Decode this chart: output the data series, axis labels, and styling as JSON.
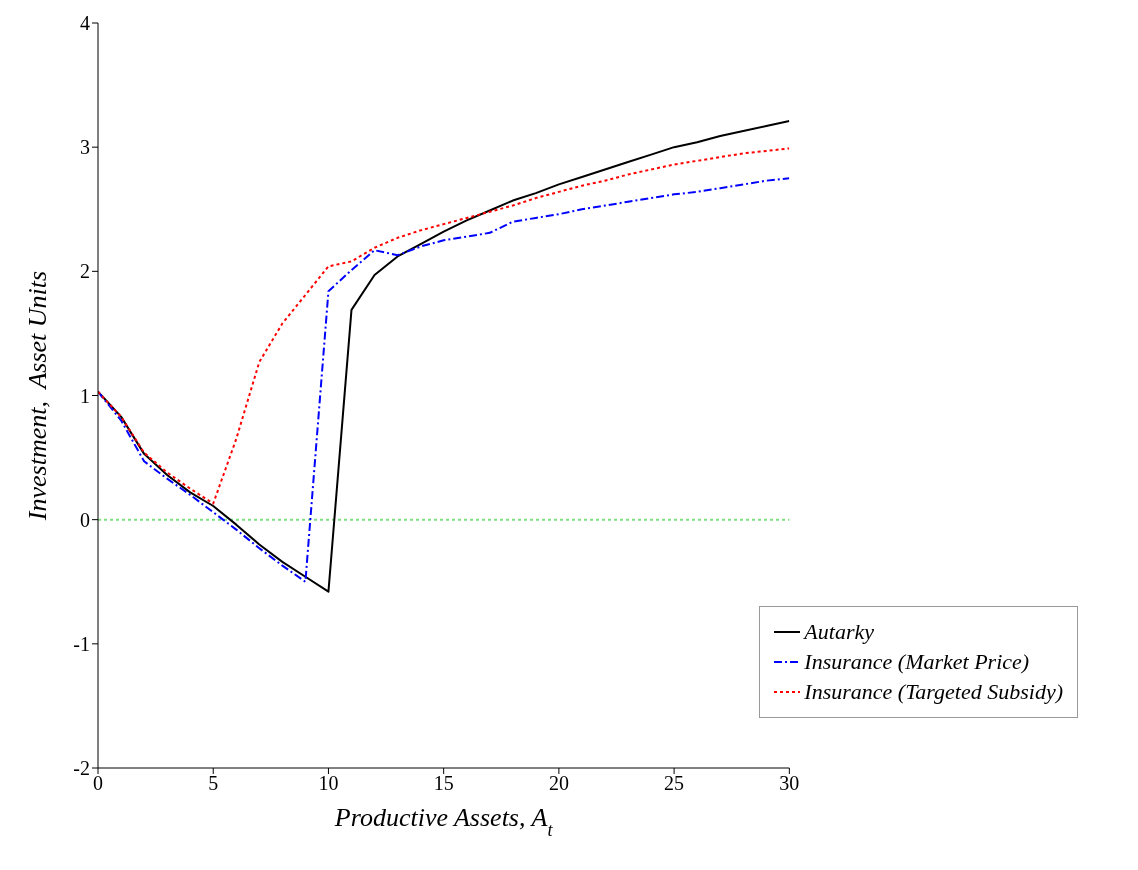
{
  "chart_data": {
    "type": "line",
    "xlabel": "Productive Assets, A$_{t}$",
    "ylabel": "Investment,  Asset Units",
    "x": [
      0,
      1,
      2,
      3,
      4,
      5,
      6,
      7,
      8,
      9,
      10,
      11,
      12,
      13,
      14,
      15,
      16,
      17,
      18,
      19,
      20,
      21,
      22,
      23,
      24,
      25,
      26,
      27,
      28,
      29,
      30
    ],
    "xlim": [
      0,
      30
    ],
    "xticks": [
      0,
      5,
      10,
      15,
      20,
      25,
      30
    ],
    "ylim": [
      -2,
      4
    ],
    "yticks": [
      -2,
      -1,
      0,
      1,
      2,
      3,
      4
    ],
    "grid": false,
    "legend": "bottom right",
    "marker": "none",
    "ref_lines": [
      {
        "axis": "y",
        "value": 0,
        "color": "#7fe07f",
        "line_style": "dotted"
      }
    ],
    "series": [
      {
        "name": "Autarky",
        "color": "#000000",
        "line_style": "solid",
        "values": [
          1.03,
          0.83,
          0.53,
          0.36,
          0.22,
          0.11,
          -0.04,
          -0.2,
          -0.34,
          -0.46,
          -0.58,
          1.69,
          1.97,
          2.12,
          2.22,
          2.32,
          2.41,
          2.49,
          2.57,
          2.63,
          2.7,
          2.76,
          2.82,
          2.88,
          2.94,
          3.0,
          3.04,
          3.09,
          3.13,
          3.17,
          3.21
        ]
      },
      {
        "name": "Insurance (Market Price)",
        "color": "#0000ff",
        "line_style": "dashed",
        "values": [
          1.03,
          0.8,
          0.47,
          0.33,
          0.2,
          0.06,
          -0.08,
          -0.23,
          -0.37,
          -0.5,
          1.84,
          2.01,
          2.17,
          2.13,
          2.2,
          2.25,
          2.28,
          2.31,
          2.4,
          2.43,
          2.46,
          2.5,
          2.53,
          2.56,
          2.59,
          2.62,
          2.64,
          2.67,
          2.7,
          2.73,
          2.75
        ]
      },
      {
        "name": "Insurance (Targeted Subsidy)",
        "color": "#ff0000",
        "line_style": "dotted",
        "values": [
          1.03,
          0.83,
          0.54,
          0.38,
          0.25,
          0.13,
          0.65,
          1.27,
          1.58,
          1.81,
          2.04,
          2.08,
          2.19,
          2.27,
          2.33,
          2.38,
          2.43,
          2.48,
          2.53,
          2.59,
          2.64,
          2.69,
          2.73,
          2.78,
          2.82,
          2.86,
          2.89,
          2.92,
          2.95,
          2.97,
          2.99
        ]
      }
    ]
  }
}
